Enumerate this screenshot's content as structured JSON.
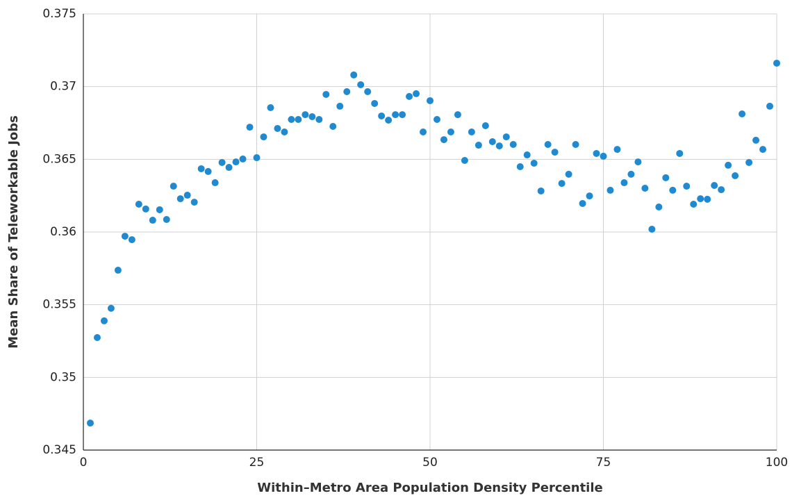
{
  "chart_data": {
    "type": "scatter",
    "xlabel": "Within–Metro Area Population Density Percentile",
    "ylabel": "Mean Share of Teleworkable Jobs",
    "x": [
      1,
      2,
      3,
      4,
      5,
      6,
      7,
      8,
      9,
      10,
      11,
      12,
      13,
      14,
      15,
      16,
      17,
      18,
      19,
      20,
      21,
      22,
      23,
      24,
      25,
      26,
      27,
      28,
      29,
      30,
      31,
      32,
      33,
      34,
      35,
      36,
      37,
      38,
      39,
      40,
      41,
      42,
      43,
      44,
      45,
      46,
      47,
      48,
      49,
      50,
      51,
      52,
      53,
      54,
      55,
      56,
      57,
      58,
      59,
      60,
      61,
      62,
      63,
      64,
      65,
      66,
      67,
      68,
      69,
      70,
      71,
      72,
      73,
      74,
      75,
      76,
      77,
      78,
      79,
      80,
      81,
      82,
      83,
      84,
      85,
      86,
      87,
      88,
      89,
      90,
      91,
      92,
      93,
      94,
      95,
      96,
      97,
      98,
      99,
      100
    ],
    "series": [
      {
        "color": "#1f8ad0",
        "values": [
          0.34686,
          0.35274,
          0.35389,
          0.35475,
          0.35737,
          0.35971,
          0.35947,
          0.36191,
          0.36158,
          0.36081,
          0.36153,
          0.36086,
          0.36315,
          0.36229,
          0.36253,
          0.36205,
          0.36435,
          0.36416,
          0.36339,
          0.36478,
          0.36444,
          0.36482,
          0.36502,
          0.36721,
          0.36511,
          0.36654,
          0.36855,
          0.36712,
          0.36688,
          0.36774,
          0.36774,
          0.36807,
          0.36793,
          0.36774,
          0.36946,
          0.36726,
          0.36865,
          0.36965,
          0.3708,
          0.37013,
          0.36965,
          0.36884,
          0.36798,
          0.36769,
          0.36807,
          0.36807,
          0.36932,
          0.36951,
          0.36688,
          0.36903,
          0.36774,
          0.36635,
          0.36688,
          0.36807,
          0.36492,
          0.36688,
          0.36597,
          0.36731,
          0.36621,
          0.36592,
          0.36654,
          0.36602,
          0.36449,
          0.3653,
          0.36473,
          0.36282,
          0.36602,
          0.36549,
          0.36334,
          0.36397,
          0.36602,
          0.36196,
          0.36248,
          0.3654,
          0.36521,
          0.36287,
          0.36568,
          0.36339,
          0.36397,
          0.36482,
          0.36301,
          0.36019,
          0.36172,
          0.36373,
          0.36287,
          0.3654,
          0.36315,
          0.36191,
          0.36229,
          0.36225,
          0.3632,
          0.36291,
          0.36459,
          0.36387,
          0.36812,
          0.36478,
          0.36631,
          0.36568,
          0.36865,
          0.37161
        ]
      }
    ],
    "xlim": [
      0,
      100
    ],
    "xticks": [
      0,
      25,
      50,
      75,
      100
    ],
    "ylim": [
      0.345,
      0.375
    ],
    "yticks": [
      0.345,
      0.35,
      0.355,
      0.36,
      0.365,
      0.37,
      0.375
    ],
    "grid": true
  }
}
